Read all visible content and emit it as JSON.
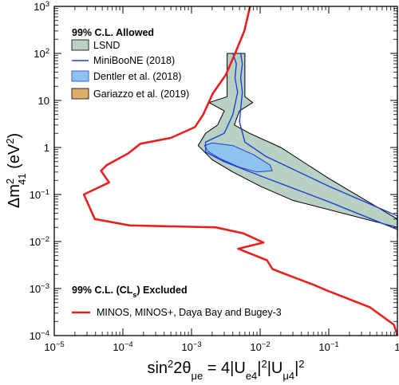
{
  "chart_data": {
    "type": "line",
    "xlabel": "sin²2θ_μe = 4|U_e4|²|U_μ4|²",
    "ylabel": "Δm²_41 (eV²)",
    "xscale": "log",
    "yscale": "log",
    "xlim": [
      1e-05,
      1
    ],
    "ylim": [
      0.0001,
      1000
    ],
    "x_ticks": [
      1e-05,
      0.0001,
      0.001,
      0.01,
      0.1,
      1
    ],
    "x_tick_labels": [
      {
        "base": "10",
        "exp": "−5"
      },
      {
        "base": "10",
        "exp": "−4"
      },
      {
        "base": "10",
        "exp": "−3"
      },
      {
        "base": "10",
        "exp": "−2"
      },
      {
        "base": "10",
        "exp": "−1"
      },
      {
        "base": "1",
        "exp": ""
      }
    ],
    "y_ticks": [
      0.0001,
      0.001,
      0.01,
      0.1,
      1,
      10,
      100,
      1000
    ],
    "y_tick_labels": [
      {
        "base": "10",
        "exp": "−4"
      },
      {
        "base": "10",
        "exp": "−3"
      },
      {
        "base": "10",
        "exp": "−2"
      },
      {
        "base": "10",
        "exp": "−1"
      },
      {
        "base": "1",
        "exp": ""
      },
      {
        "base": "10",
        "exp": ""
      },
      {
        "base": "10",
        "exp": "2"
      },
      {
        "base": "10",
        "exp": "3"
      }
    ],
    "legend_allowed_title": "99% C.L. Allowed",
    "legend_excluded_title": "99% C.L. (CL_s) Excluded",
    "legend_placement": "upper-left and lower-left",
    "series": [
      {
        "name": "MINOS, MINOS+, Daya Bay and Bugey-3",
        "kind": "line",
        "color": "#e8201e",
        "points": [
          [
            0.00714,
            1000
          ],
          [
            0.00589,
            300
          ],
          [
            0.00431,
            100
          ],
          [
            0.00316,
            35
          ],
          [
            0.00204,
            14
          ],
          [
            0.00148,
            5.0
          ],
          [
            0.00112,
            2.7
          ],
          [
            0.0005,
            1.6
          ],
          [
            0.00018,
            1.2
          ],
          [
            0.00012,
            0.75
          ],
          [
            5.8e-05,
            0.42
          ],
          [
            4.8e-05,
            0.32
          ],
          [
            6.3e-05,
            0.18
          ],
          [
            2.7e-05,
            0.1
          ],
          [
            3.9e-05,
            0.03
          ],
          [
            0.000126,
            0.022
          ],
          [
            0.00224,
            0.02
          ],
          [
            0.00562,
            0.015
          ],
          [
            0.0112,
            0.0095
          ],
          [
            0.00479,
            0.007
          ],
          [
            0.0126,
            0.004
          ],
          [
            0.0151,
            0.0026
          ],
          [
            0.0219,
            0.0021
          ],
          [
            0.0603,
            0.0012
          ],
          [
            0.0955,
            0.0009
          ],
          [
            0.398,
            0.0004
          ],
          [
            0.891,
            0.00017
          ],
          [
            1.0,
            0.0001
          ]
        ]
      },
      {
        "name": "LSND",
        "kind": "region",
        "fill": "#b8d1c3",
        "stroke": "#000000",
        "points": [
          [
            0.0033,
            100
          ],
          [
            0.006,
            100
          ],
          [
            0.006,
            12
          ],
          [
            0.0078,
            9
          ],
          [
            0.005,
            6
          ],
          [
            0.0042,
            3.0
          ],
          [
            0.007,
            2.0
          ],
          [
            0.02,
            1.0
          ],
          [
            0.1,
            0.22
          ],
          [
            1.0,
            0.03
          ],
          [
            1.0,
            0.02
          ],
          [
            0.03,
            0.075
          ],
          [
            0.01,
            0.15
          ],
          [
            0.004,
            0.3
          ],
          [
            0.002,
            0.55
          ],
          [
            0.00125,
            1.1
          ],
          [
            0.0016,
            2.0
          ],
          [
            0.0024,
            3.0
          ],
          [
            0.003,
            6
          ],
          [
            0.0018,
            9
          ],
          [
            0.0033,
            12
          ]
        ]
      },
      {
        "name": "MiniBooNE (2018)",
        "kind": "contour",
        "stroke": "#1f3fd6",
        "points": [
          [
            0.004,
            100
          ],
          [
            0.0045,
            60
          ],
          [
            0.0043,
            30
          ],
          [
            0.0047,
            15
          ],
          [
            0.004,
            5
          ],
          [
            0.003,
            2.0
          ],
          [
            0.0016,
            1.3
          ],
          [
            0.0016,
            0.8
          ],
          [
            0.003,
            0.5
          ],
          [
            0.01,
            0.25
          ],
          [
            0.1,
            0.07
          ],
          [
            1.0,
            0.018
          ],
          [
            1.0,
            0.035
          ],
          [
            0.1,
            0.15
          ],
          [
            0.012,
            0.65
          ],
          [
            0.006,
            1.3
          ],
          [
            0.005,
            3.5
          ],
          [
            0.0055,
            15
          ],
          [
            0.0052,
            30
          ],
          [
            0.0055,
            60
          ],
          [
            0.0052,
            100
          ]
        ]
      },
      {
        "name": "Dentler et al. (2018)",
        "kind": "region",
        "fill": "#8fc2ef",
        "stroke": "#1f3fd6",
        "points": [
          [
            0.00155,
            1.1
          ],
          [
            0.002,
            1.25
          ],
          [
            0.004,
            1.1
          ],
          [
            0.008,
            0.7
          ],
          [
            0.014,
            0.42
          ],
          [
            0.015,
            0.32
          ],
          [
            0.009,
            0.3
          ],
          [
            0.005,
            0.38
          ],
          [
            0.0026,
            0.58
          ],
          [
            0.00175,
            0.82
          ]
        ]
      },
      {
        "name": "Gariazzo et al. (2019)",
        "kind": "region",
        "fill": "#dcae6b",
        "stroke": "#000000",
        "points": []
      }
    ]
  }
}
